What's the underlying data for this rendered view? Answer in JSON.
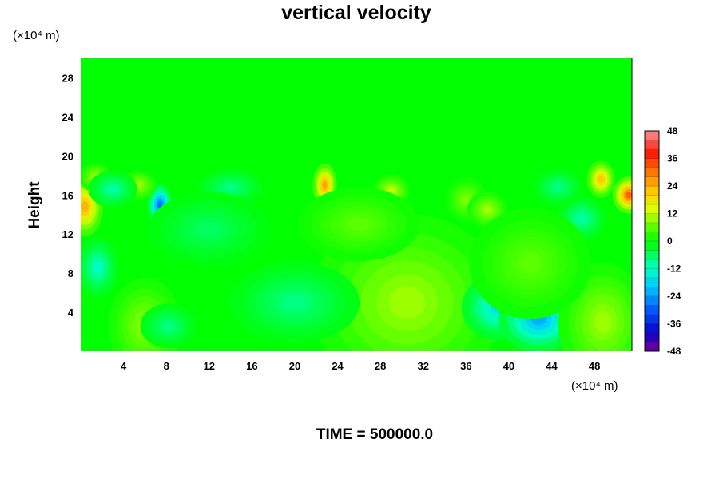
{
  "chart_data": {
    "type": "heatmap",
    "title": "vertical velocity",
    "ylabel": "Height",
    "x_unit_label": "(×10⁴ m)",
    "y_unit_label": "(×10⁴ m)",
    "xlim": [
      0,
      51.5
    ],
    "ylim": [
      0,
      30
    ],
    "x_ticks": [
      4,
      8,
      12,
      16,
      20,
      24,
      28,
      32,
      36,
      40,
      44,
      48
    ],
    "y_ticks": [
      4,
      8,
      12,
      16,
      20,
      24,
      28
    ],
    "colorbar": {
      "min": -48,
      "max": 48,
      "step": 4,
      "ticks": [
        48,
        36,
        24,
        12,
        0,
        -12,
        -24,
        -36,
        -48
      ]
    },
    "background_value": 0,
    "features": [
      {
        "x": 29.2,
        "y": 4.5,
        "sx": 2.6,
        "sy": 2.4,
        "value": 24
      },
      {
        "x": 31.8,
        "y": 4.6,
        "sx": 2.2,
        "sy": 2.6,
        "value": 22
      },
      {
        "x": 30.5,
        "y": 5.0,
        "sx": 4.8,
        "sy": 4.8,
        "value": 10
      },
      {
        "x": 39.0,
        "y": 4.5,
        "sx": 1.8,
        "sy": 1.8,
        "value": -16
      },
      {
        "x": 42.8,
        "y": 3.3,
        "sx": 2.0,
        "sy": 1.8,
        "value": -22
      },
      {
        "x": 48.8,
        "y": 3.0,
        "sx": 2.2,
        "sy": 3.2,
        "value": 10
      },
      {
        "x": 6.0,
        "y": 2.6,
        "sx": 1.8,
        "sy": 2.6,
        "value": 9
      },
      {
        "x": 8.2,
        "y": 2.6,
        "sx": 1.4,
        "sy": 1.2,
        "value": -8
      },
      {
        "x": 20.0,
        "y": 5.0,
        "sx": 3.2,
        "sy": 2.2,
        "value": -8
      },
      {
        "x": 1.6,
        "y": 8.6,
        "sx": 1.0,
        "sy": 1.6,
        "value": -12
      },
      {
        "x": 0.4,
        "y": 14.8,
        "sx": 0.9,
        "sy": 1.6,
        "value": 24
      },
      {
        "x": 1.4,
        "y": 17.8,
        "sx": 0.8,
        "sy": 0.8,
        "value": 10
      },
      {
        "x": 7.4,
        "y": 15.0,
        "sx": 0.6,
        "sy": 1.1,
        "value": -28
      },
      {
        "x": 5.4,
        "y": 17.0,
        "sx": 0.9,
        "sy": 0.8,
        "value": 10
      },
      {
        "x": 22.8,
        "y": 17.0,
        "sx": 0.6,
        "sy": 1.2,
        "value": 26
      },
      {
        "x": 29.0,
        "y": 16.4,
        "sx": 0.9,
        "sy": 0.9,
        "value": 12
      },
      {
        "x": 36.0,
        "y": 15.5,
        "sx": 1.0,
        "sy": 1.2,
        "value": 8
      },
      {
        "x": 38.0,
        "y": 14.5,
        "sx": 1.0,
        "sy": 1.0,
        "value": 10
      },
      {
        "x": 51.2,
        "y": 16.0,
        "sx": 0.8,
        "sy": 1.0,
        "value": 32
      },
      {
        "x": 48.6,
        "y": 17.6,
        "sx": 0.7,
        "sy": 1.0,
        "value": 22
      },
      {
        "x": 46.8,
        "y": 13.6,
        "sx": 1.2,
        "sy": 1.2,
        "value": -10
      },
      {
        "x": 44.6,
        "y": 16.8,
        "sx": 1.2,
        "sy": 1.0,
        "value": -8
      },
      {
        "x": 14.0,
        "y": 16.8,
        "sx": 1.6,
        "sy": 1.0,
        "value": -8
      },
      {
        "x": 3.0,
        "y": 16.6,
        "sx": 1.2,
        "sy": 1.0,
        "value": -10
      },
      {
        "x": 12.0,
        "y": 12.5,
        "sx": 3.0,
        "sy": 2.0,
        "value": -6
      },
      {
        "x": 26.0,
        "y": 13.0,
        "sx": 3.0,
        "sy": 2.0,
        "value": 6
      },
      {
        "x": 42.0,
        "y": 9.0,
        "sx": 3.0,
        "sy": 3.0,
        "value": 6
      }
    ]
  },
  "footer": {
    "text": "TIME = 500000.0"
  }
}
